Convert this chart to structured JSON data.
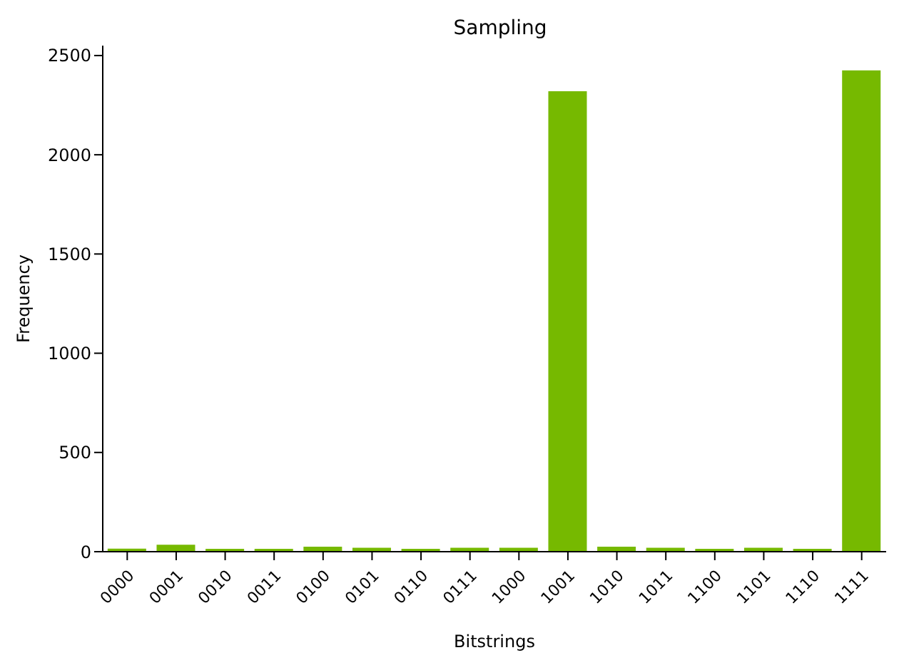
{
  "chart_data": {
    "type": "bar",
    "title": "Sampling",
    "xlabel": "Bitstrings",
    "ylabel": "Frequency",
    "categories": [
      "0000",
      "0001",
      "0010",
      "0011",
      "0100",
      "0101",
      "0110",
      "0111",
      "1000",
      "1001",
      "1010",
      "1011",
      "1100",
      "1101",
      "1110",
      "1111"
    ],
    "values": [
      15,
      35,
      14,
      14,
      25,
      20,
      14,
      20,
      20,
      2320,
      25,
      20,
      14,
      20,
      14,
      2425
    ],
    "color": "#76b900",
    "ylim": [
      0,
      2550
    ],
    "yticks": [
      0,
      500,
      1000,
      1500,
      2000,
      2500
    ],
    "grid": false,
    "legend": false
  }
}
